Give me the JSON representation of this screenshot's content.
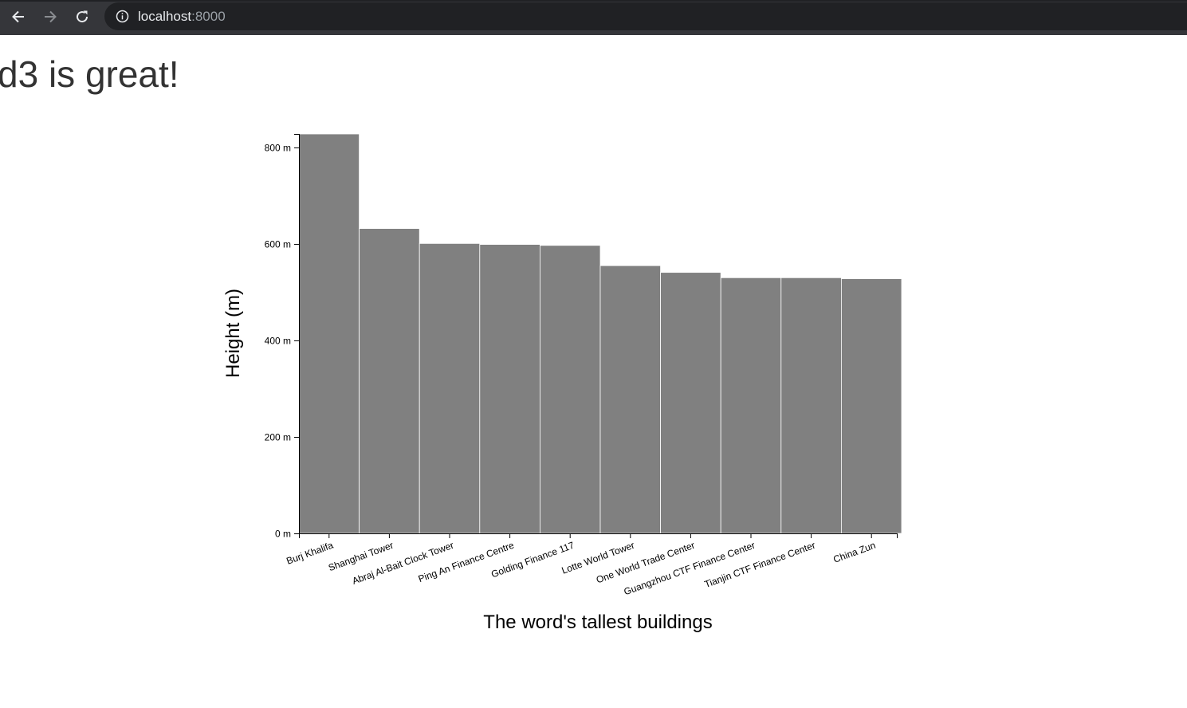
{
  "browser": {
    "host": "localhost",
    "port": ":8000",
    "icons": [
      "back-arrow-icon",
      "forward-arrow-icon",
      "reload-icon",
      "info-icon"
    ]
  },
  "page": {
    "heading": "d3 is great!"
  },
  "chart_data": {
    "type": "bar",
    "title": "",
    "xlabel": "The word's tallest buildings",
    "ylabel": "Height (m)",
    "categories": [
      "Burj Khalifa",
      "Shanghai Tower",
      "Abraj Al-Bait Clock Tower",
      "Ping An Finance Centre",
      "Golding Finance 117",
      "Lotte World Tower",
      "One World Trade Center",
      "Guangzhou CTF Finance Center",
      "Tianjin CTF Finance Center",
      "China Zun"
    ],
    "values": [
      828,
      632,
      601,
      599,
      597,
      555,
      541,
      530,
      530,
      528
    ],
    "ylim": [
      0,
      828
    ],
    "yticks": [
      0,
      200,
      400,
      600,
      800
    ],
    "ytick_labels": [
      "0 m",
      "200 m",
      "400 m",
      "600 m",
      "800 m"
    ],
    "bar_color": "#808080",
    "grid": false,
    "legend": "none"
  }
}
